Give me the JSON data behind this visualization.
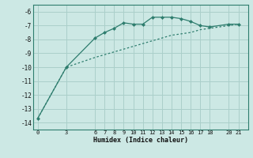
{
  "xlabel": "Humidex (Indice chaleur)",
  "bg_color": "#cce8e4",
  "grid_color": "#aacfca",
  "line_color": "#2e7d6e",
  "line1_x": [
    0,
    3,
    6,
    7,
    8,
    9,
    10,
    11,
    12,
    13,
    14,
    15,
    16,
    17,
    18,
    20,
    21
  ],
  "line1_y": [
    -13.7,
    -10.0,
    -7.9,
    -7.5,
    -7.2,
    -6.8,
    -6.9,
    -6.9,
    -6.4,
    -6.4,
    -6.4,
    -6.5,
    -6.7,
    -7.0,
    -7.1,
    -6.9,
    -6.9
  ],
  "line2_x": [
    0,
    3,
    6,
    7,
    8,
    9,
    10,
    11,
    12,
    13,
    14,
    15,
    16,
    17,
    18,
    20,
    21
  ],
  "line2_y": [
    -13.7,
    -10.0,
    -9.3,
    -9.1,
    -8.9,
    -8.7,
    -8.5,
    -8.3,
    -8.1,
    -7.9,
    -7.7,
    -7.6,
    -7.5,
    -7.3,
    -7.2,
    -7.0,
    -6.9
  ],
  "xlim": [
    -0.5,
    22
  ],
  "ylim": [
    -14.5,
    -5.5
  ],
  "xticks": [
    0,
    3,
    6,
    7,
    8,
    9,
    10,
    11,
    12,
    13,
    14,
    15,
    16,
    17,
    18,
    20,
    21
  ],
  "yticks": [
    -6,
    -7,
    -8,
    -9,
    -10,
    -11,
    -12,
    -13,
    -14
  ]
}
